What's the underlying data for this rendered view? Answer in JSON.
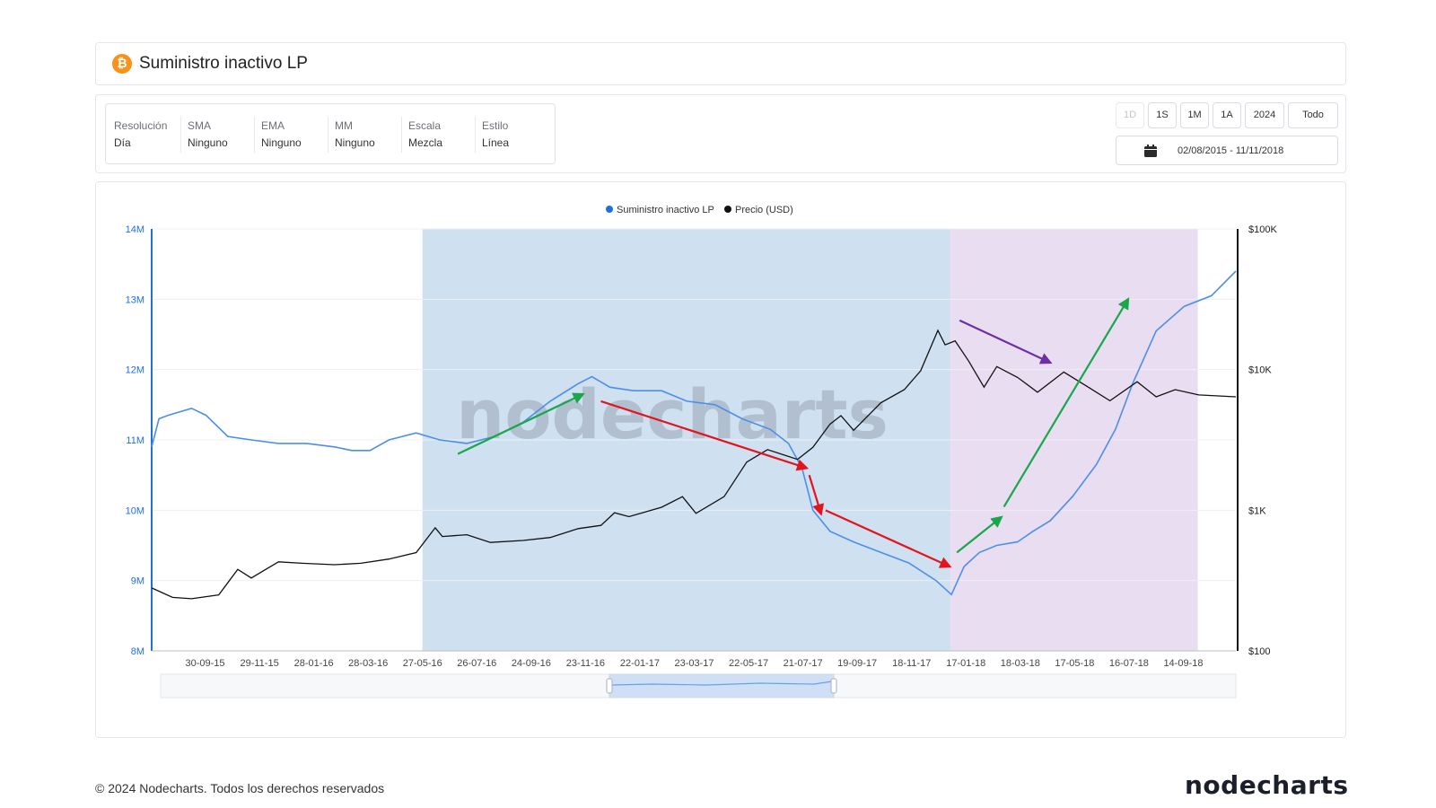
{
  "header": {
    "title": "Suministro inactivo LP",
    "coin_icon": "bitcoin-icon",
    "coin_symbol": "₿",
    "coin_color": "#f7931a"
  },
  "settings": [
    {
      "label": "Resolución",
      "value": "Día"
    },
    {
      "label": "SMA",
      "value": "Ninguno"
    },
    {
      "label": "EMA",
      "value": "Ninguno"
    },
    {
      "label": "MM",
      "value": "Ninguno"
    },
    {
      "label": "Escala",
      "value": "Mezcla"
    },
    {
      "label": "Estilo",
      "value": "Línea"
    }
  ],
  "ranges": [
    {
      "label": "1D",
      "disabled": true
    },
    {
      "label": "1S",
      "disabled": false
    },
    {
      "label": "1M",
      "disabled": false
    },
    {
      "label": "1A",
      "disabled": false
    },
    {
      "label": "2024",
      "disabled": false
    },
    {
      "label": "Todo",
      "disabled": false
    }
  ],
  "date_range": "02/08/2015 - 11/11/2018",
  "watermark": "nodecharts",
  "footer": {
    "copyright": "© 2024 Nodecharts. Todos los derechos reservados",
    "logo": "nodecharts"
  },
  "colors": {
    "supply": "#1f6fe0",
    "price": "#111111",
    "shade_blue": "#cfe0f1",
    "shade_purple": "#e9ddf1",
    "arrow_green": "#1aa64a",
    "arrow_red": "#e3141b",
    "arrow_purple": "#6c2fa8"
  },
  "chart_data": {
    "type": "line",
    "legend": [
      "Suministro inactivo LP",
      "Precio (USD)"
    ],
    "legend_position": "top-center",
    "x_tick_labels": [
      "30-09-15",
      "29-11-15",
      "28-01-16",
      "28-03-16",
      "27-05-16",
      "26-07-16",
      "24-09-16",
      "23-11-16",
      "22-01-17",
      "23-03-17",
      "22-05-17",
      "21-07-17",
      "19-09-17",
      "18-11-17",
      "17-01-18",
      "18-03-18",
      "17-05-18",
      "16-07-18",
      "14-09-18"
    ],
    "xlim": [
      "2015-08-02",
      "2018-11-11"
    ],
    "y_left": {
      "label_ticks": [
        "8M",
        "9M",
        "10M",
        "11M",
        "12M",
        "13M",
        "14M"
      ],
      "ylim": [
        8000000,
        14000000
      ]
    },
    "y_right": {
      "label_ticks": [
        "$100",
        "$1K",
        "$10K",
        "$100K"
      ],
      "scale": "log",
      "ylim": [
        100,
        100000
      ]
    },
    "grid": true,
    "series": [
      {
        "name": "Suministro inactivo LP",
        "axis": "left",
        "x": [
          "2015-08-02",
          "2015-08-10",
          "2015-08-20",
          "2015-09-15",
          "2015-10-01",
          "2015-10-25",
          "2015-11-20",
          "2015-12-20",
          "2016-01-20",
          "2016-02-20",
          "2016-03-10",
          "2016-03-30",
          "2016-04-20",
          "2016-05-20",
          "2016-06-15",
          "2016-07-15",
          "2016-08-15",
          "2016-09-15",
          "2016-10-15",
          "2016-11-15",
          "2016-11-30",
          "2016-12-20",
          "2017-01-15",
          "2017-02-15",
          "2017-03-15",
          "2017-04-15",
          "2017-05-15",
          "2017-06-15",
          "2017-07-05",
          "2017-07-20",
          "2017-08-01",
          "2017-08-20",
          "2017-09-15",
          "2017-10-15",
          "2017-11-15",
          "2017-12-15",
          "2018-01-01",
          "2018-01-15",
          "2018-02-01",
          "2018-02-20",
          "2018-03-15",
          "2018-04-01",
          "2018-04-20",
          "2018-05-15",
          "2018-06-10",
          "2018-07-01",
          "2018-07-20",
          "2018-08-15",
          "2018-09-15",
          "2018-10-15",
          "2018-11-11"
        ],
        "values": [
          10900000,
          11300000,
          11350000,
          11450000,
          11350000,
          11050000,
          11000000,
          10950000,
          10950000,
          10900000,
          10850000,
          10850000,
          11000000,
          11100000,
          11000000,
          10950000,
          11050000,
          11250000,
          11550000,
          11800000,
          11900000,
          11750000,
          11700000,
          11700000,
          11550000,
          11500000,
          11300000,
          11150000,
          10950000,
          10600000,
          10000000,
          9700000,
          9550000,
          9400000,
          9250000,
          9000000,
          8800000,
          9200000,
          9400000,
          9500000,
          9550000,
          9700000,
          9850000,
          10200000,
          10650000,
          11150000,
          11800000,
          12550000,
          12900000,
          13050000,
          13400000
        ]
      },
      {
        "name": "Precio (USD)",
        "axis": "right",
        "x": [
          "2015-08-02",
          "2015-08-25",
          "2015-09-15",
          "2015-10-15",
          "2015-11-05",
          "2015-11-20",
          "2015-12-20",
          "2016-01-15",
          "2016-02-20",
          "2016-03-20",
          "2016-04-20",
          "2016-05-20",
          "2016-06-10",
          "2016-06-18",
          "2016-07-15",
          "2016-08-10",
          "2016-09-15",
          "2016-10-15",
          "2016-11-15",
          "2016-12-10",
          "2016-12-25",
          "2017-01-10",
          "2017-02-15",
          "2017-03-10",
          "2017-03-25",
          "2017-04-25",
          "2017-05-20",
          "2017-06-12",
          "2017-07-15",
          "2017-08-01",
          "2017-08-20",
          "2017-09-01",
          "2017-09-15",
          "2017-10-15",
          "2017-11-10",
          "2017-11-28",
          "2017-12-17",
          "2017-12-25",
          "2018-01-05",
          "2018-01-20",
          "2018-02-06",
          "2018-02-20",
          "2018-03-15",
          "2018-04-06",
          "2018-05-05",
          "2018-06-01",
          "2018-06-25",
          "2018-07-25",
          "2018-08-15",
          "2018-09-05",
          "2018-10-01",
          "2018-11-11"
        ],
        "values": [
          280,
          240,
          235,
          250,
          380,
          330,
          430,
          420,
          410,
          420,
          450,
          500,
          750,
          650,
          670,
          590,
          610,
          640,
          740,
          780,
          960,
          900,
          1050,
          1250,
          950,
          1250,
          2200,
          2700,
          2300,
          2800,
          4100,
          4700,
          3700,
          5800,
          7200,
          9800,
          19000,
          15000,
          16000,
          11500,
          7500,
          10500,
          8800,
          6900,
          9600,
          7500,
          6000,
          8200,
          6400,
          7200,
          6600,
          6400
        ]
      }
    ],
    "periods": [
      {
        "from": "2016-05-27",
        "to": "2017-12-31",
        "color": "blue"
      },
      {
        "from": "2017-12-31",
        "to": "2018-09-30",
        "color": "purple"
      }
    ],
    "annotations": [
      {
        "type": "arrow",
        "color": "green",
        "from": [
          "2016-07-05",
          10800000
        ],
        "to": [
          "2016-11-20",
          11650000
        ]
      },
      {
        "type": "arrow",
        "color": "red",
        "from": [
          "2016-12-10",
          11550000
        ],
        "to": [
          "2017-07-25",
          10600000
        ]
      },
      {
        "type": "arrow",
        "color": "red",
        "from": [
          "2017-07-28",
          10500000
        ],
        "to": [
          "2017-08-10",
          9950000
        ]
      },
      {
        "type": "arrow",
        "color": "red",
        "from": [
          "2017-08-15",
          10000000
        ],
        "to": [
          "2017-12-30",
          9200000
        ]
      },
      {
        "type": "arrow",
        "color": "green",
        "from": [
          "2018-01-07",
          9400000
        ],
        "to": [
          "2018-02-25",
          9900000
        ]
      },
      {
        "type": "arrow",
        "color": "green",
        "from": [
          "2018-02-28",
          10050000
        ],
        "to": [
          "2018-07-15",
          13000000
        ]
      },
      {
        "type": "arrow",
        "color": "purple",
        "from": [
          "2018-01-10",
          12700000
        ],
        "to": [
          "2018-04-20",
          12100000
        ]
      }
    ]
  }
}
